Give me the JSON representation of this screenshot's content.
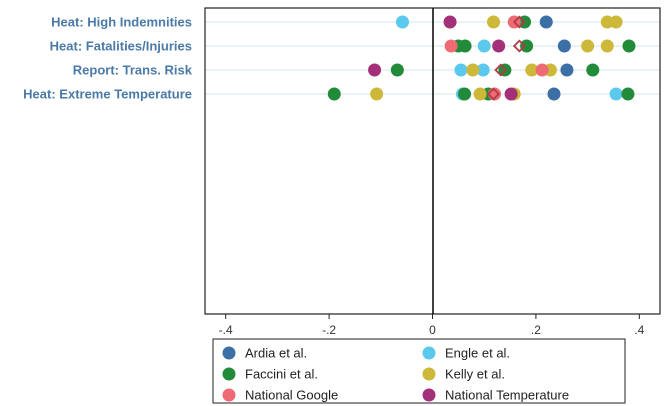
{
  "chart_data": {
    "type": "scatter",
    "title": "",
    "xlabel": "",
    "ylabel": "",
    "xlim": [
      -0.44,
      0.44
    ],
    "xticks": [
      -0.4,
      -0.2,
      0,
      0.2,
      0.4
    ],
    "xtick_labels": [
      "-.4",
      "-.2",
      "0",
      ".2",
      ".4"
    ],
    "categories": [
      "Heat: High Indemnities",
      "Heat: Fatalities/Injuries",
      "Report: Trans. Risk",
      "Heat: Extreme Temperature"
    ],
    "grid": "horizontal lines at category rows",
    "reference_line_x": 0,
    "legend_position": "bottom",
    "series": [
      {
        "name": "Ardia et al.",
        "color": "#3b6fa6",
        "points": [
          {
            "category": "Heat: High Indemnities",
            "x": 0.22
          },
          {
            "category": "Heat: Fatalities/Injuries",
            "x": 0.255
          },
          {
            "category": "Report: Trans. Risk",
            "x": 0.26
          },
          {
            "category": "Heat: Extreme Temperature",
            "x": 0.235
          }
        ]
      },
      {
        "name": "Engle et al.",
        "color": "#5bc8ee",
        "points": [
          {
            "category": "Heat: High Indemnities",
            "x": -0.058
          },
          {
            "category": "Heat: Fatalities/Injuries",
            "x": 0.1
          },
          {
            "category": "Report: Trans. Risk",
            "x": 0.055
          },
          {
            "category": "Report: Trans. Risk",
            "x": 0.098
          },
          {
            "category": "Heat: Extreme Temperature",
            "x": 0.058
          },
          {
            "category": "Heat: Extreme Temperature",
            "x": 0.355
          }
        ]
      },
      {
        "name": "Faccini et al.",
        "color": "#228b3a",
        "points": [
          {
            "category": "Heat: High Indemnities",
            "x": 0.178
          },
          {
            "category": "Heat: Fatalities/Injuries",
            "x": 0.05
          },
          {
            "category": "Heat: Fatalities/Injuries",
            "x": 0.063
          },
          {
            "category": "Heat: Fatalities/Injuries",
            "x": 0.182
          },
          {
            "category": "Heat: Fatalities/Injuries",
            "x": 0.38
          },
          {
            "category": "Report: Trans. Risk",
            "x": -0.068
          },
          {
            "category": "Report: Trans. Risk",
            "x": 0.14
          },
          {
            "category": "Report: Trans. Risk",
            "x": 0.31
          },
          {
            "category": "Heat: Extreme Temperature",
            "x": -0.19
          },
          {
            "category": "Heat: Extreme Temperature",
            "x": 0.062
          },
          {
            "category": "Heat: Extreme Temperature",
            "x": 0.108
          },
          {
            "category": "Heat: Extreme Temperature",
            "x": 0.378
          }
        ]
      },
      {
        "name": "Kelly et al.",
        "color": "#cdb83a",
        "points": [
          {
            "category": "Heat: High Indemnities",
            "x": 0.118
          },
          {
            "category": "Heat: High Indemnities",
            "x": 0.338
          },
          {
            "category": "Heat: High Indemnities",
            "x": 0.355
          },
          {
            "category": "Heat: Fatalities/Injuries",
            "x": 0.3
          },
          {
            "category": "Heat: Fatalities/Injuries",
            "x": 0.338
          },
          {
            "category": "Report: Trans. Risk",
            "x": 0.078
          },
          {
            "category": "Report: Trans. Risk",
            "x": 0.192
          },
          {
            "category": "Report: Trans. Risk",
            "x": 0.228
          },
          {
            "category": "Heat: Extreme Temperature",
            "x": -0.108
          },
          {
            "category": "Heat: Extreme Temperature",
            "x": 0.092
          },
          {
            "category": "Heat: Extreme Temperature",
            "x": 0.158
          }
        ]
      },
      {
        "name": "National Google",
        "color": "#ef6b73",
        "points": [
          {
            "category": "Heat: High Indemnities",
            "x": 0.158
          },
          {
            "category": "Heat: Fatalities/Injuries",
            "x": 0.036
          },
          {
            "category": "Report: Trans. Risk",
            "x": 0.212
          },
          {
            "category": "Heat: Extreme Temperature",
            "x": 0.12
          }
        ]
      },
      {
        "name": "National Temperature",
        "color": "#a5307a",
        "points": [
          {
            "category": "Heat: High Indemnities",
            "x": 0.034
          },
          {
            "category": "Heat: Fatalities/Injuries",
            "x": 0.128
          },
          {
            "category": "Report: Trans. Risk",
            "x": -0.112
          },
          {
            "category": "Heat: Extreme Temperature",
            "x": 0.152
          }
        ]
      },
      {
        "name": "",
        "marker": "hollow-diamond",
        "color": "#b23a48",
        "points": [
          {
            "category": "Heat: High Indemnities",
            "x": 0.168
          },
          {
            "category": "Heat: Fatalities/Injuries",
            "x": 0.168
          },
          {
            "category": "Report: Trans. Risk",
            "x": 0.132
          },
          {
            "category": "Heat: Extreme Temperature",
            "x": 0.118
          }
        ]
      }
    ],
    "legend": [
      "Ardia et al.",
      "Engle et al.",
      "Faccini et al.",
      "Kelly et al.",
      "National Google",
      "National Temperature"
    ]
  }
}
